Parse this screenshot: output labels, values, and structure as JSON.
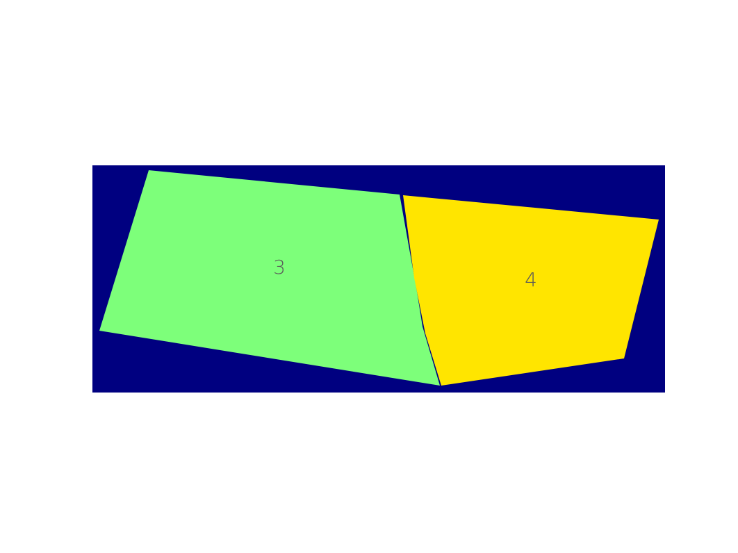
{
  "colors": {
    "page_background": "#ffffff",
    "image_background": "#000080",
    "region_3_fill": "#7dff7a",
    "region_4_fill": "#ffe500",
    "label_color": "#5a5a5a"
  },
  "regions": [
    {
      "id": "region-3",
      "label": "3"
    },
    {
      "id": "region-4",
      "label": "4"
    }
  ]
}
